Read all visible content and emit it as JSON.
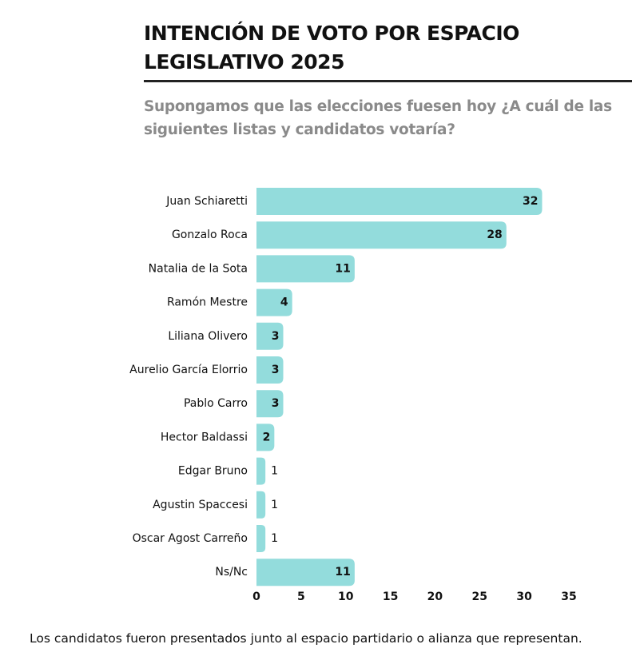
{
  "chart_data": {
    "type": "hbar",
    "title": "INTENCIÓN DE VOTO POR ESPACIO LEGISLATIVO 2025",
    "subtitle": "Supongamos que las elecciones fuesen hoy ¿A cuál de las siguientes listas y candidatos votaría?",
    "categories": [
      "Juan Schiaretti",
      "Gonzalo Roca",
      "Natalia de la Sota",
      "Ramón Mestre",
      "Liliana Olivero",
      "Aurelio García Elorrio",
      "Pablo Carro",
      "Hector Baldassi",
      "Edgar Bruno",
      "Agustin Spaccesi",
      "Oscar Agost Carreño",
      "Ns/Nc"
    ],
    "values": [
      32,
      28,
      11,
      4,
      3,
      3,
      3,
      2,
      1,
      1,
      1,
      11
    ],
    "color": "#93dcdc",
    "xlim": [
      0,
      35
    ],
    "xticks": [
      0,
      5,
      10,
      15,
      20,
      25,
      30,
      35
    ],
    "note": "Los candidatos fueron presentados junto al espacio partidario o alianza que representan."
  }
}
